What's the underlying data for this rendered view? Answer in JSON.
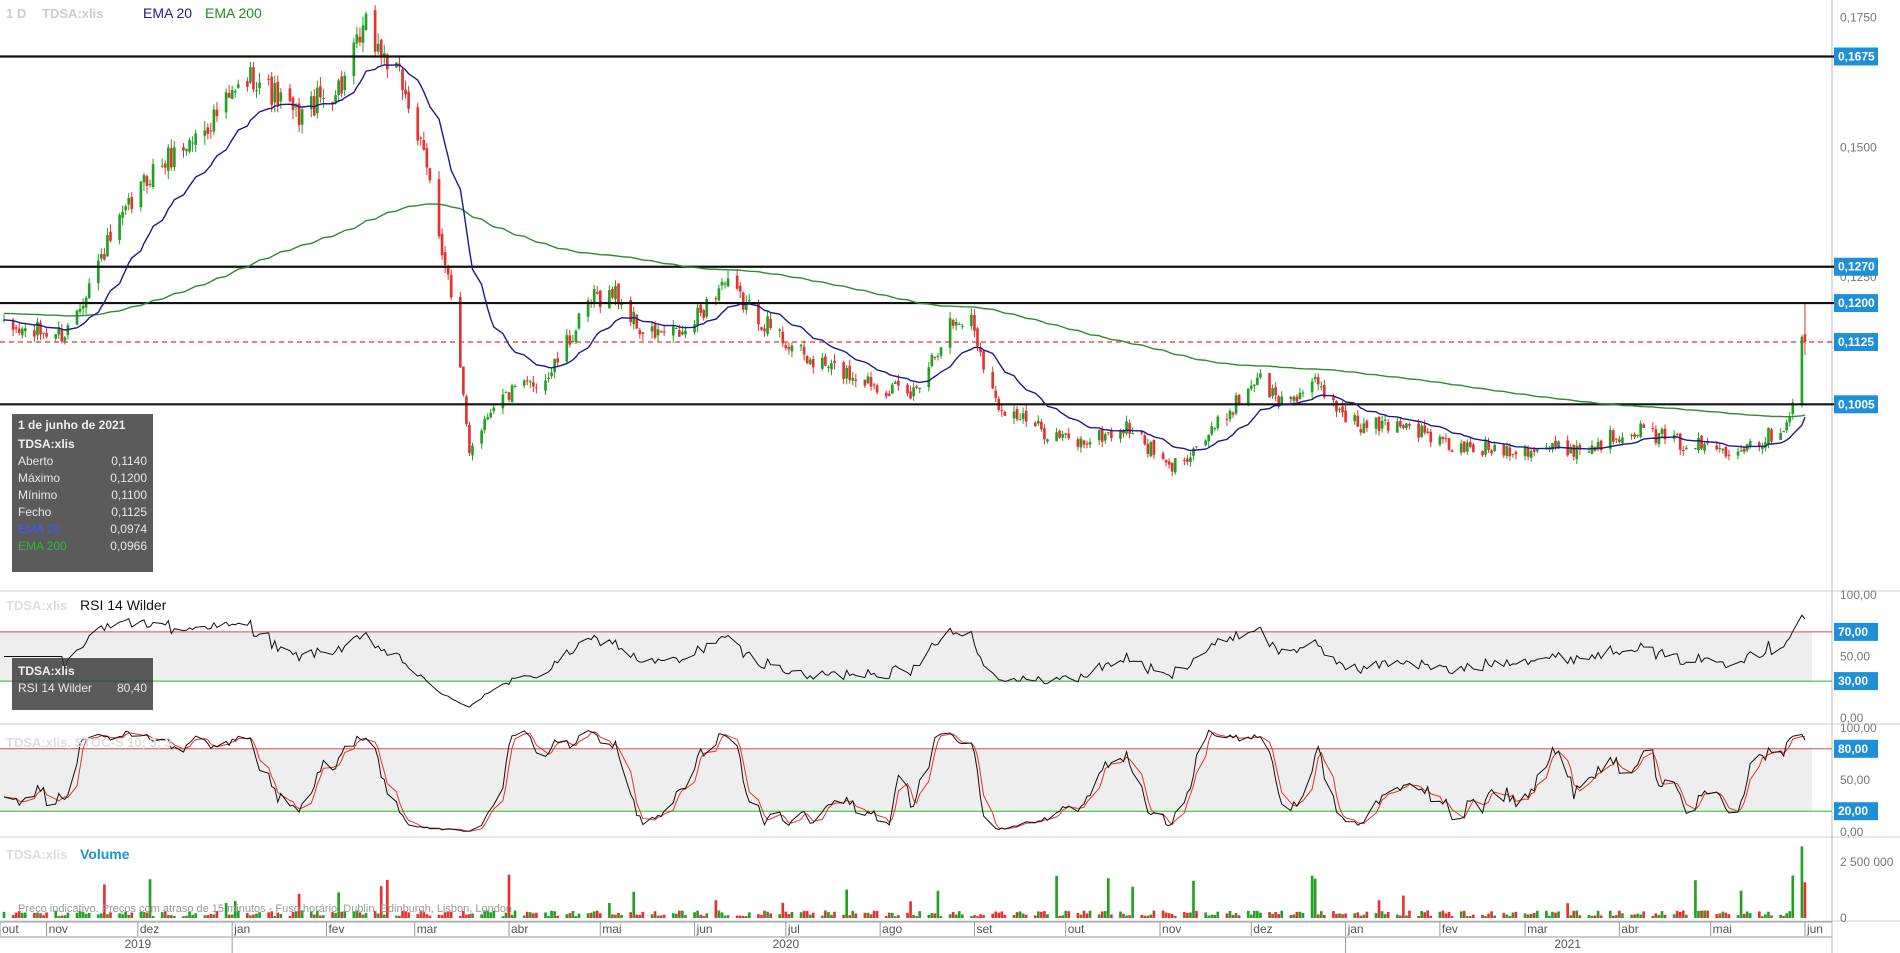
{
  "header": {
    "timeframe": "1 D",
    "symbol": "TDSA:xlis",
    "ema20_label": "EMA 20",
    "ema200_label": "EMA 200"
  },
  "rsi_panel": {
    "symbol": "TDSA:xlis",
    "label": "RSI 14 Wilder"
  },
  "stoch_panel": {
    "label": "TDSA:xlis, STOC-S 10; 3; 3"
  },
  "volume_panel": {
    "symbol": "TDSA:xlis",
    "label": "Volume"
  },
  "disclaimer": "Preço indicativo. Preços com atraso de 15 minutos - Fuso horário: Dublin, Edinburgh, Lisbon, London",
  "tooltip": {
    "date": "1 de junho de 2021",
    "symbol": "TDSA:xlis",
    "rows": [
      {
        "label": "Aberto",
        "value": "0,1140"
      },
      {
        "label": "Máximo",
        "value": "0,1200"
      },
      {
        "label": "Mínimo",
        "value": "0,1100"
      },
      {
        "label": "Fecho",
        "value": "0,1125"
      },
      {
        "label": "EMA 20",
        "value": "0,0974"
      },
      {
        "label": "EMA 200",
        "value": "0,0966"
      }
    ]
  },
  "rsi_tooltip": {
    "symbol": "TDSA:xlis",
    "label": "RSI 14 Wilder",
    "value": "80,40"
  },
  "colors": {
    "up": "#22a022",
    "down": "#e8312f",
    "ema20": "#1a1a8c",
    "ema200": "#2e8b2e",
    "axis_label_bg": "#1f8fd6",
    "overbought": "#d94a4a",
    "oversold": "#2ab52a"
  },
  "chart_data": {
    "type": "candlestick",
    "title": "TDSA:xlis",
    "price_axis": {
      "ylim": [
        0.0655,
        0.178
      ],
      "ticks": [
        {
          "value": 0.175,
          "label": "0,1750"
        },
        {
          "value": 0.15,
          "label": "0,1500"
        },
        {
          "value": 0.125,
          "label": "0,1250"
        }
      ],
      "highlighted": [
        {
          "value": 0.1675,
          "label": "0,1675"
        },
        {
          "value": 0.127,
          "label": "0,1270"
        },
        {
          "value": 0.12,
          "label": "0,1200"
        },
        {
          "value": 0.1125,
          "label": "0,1125"
        },
        {
          "value": 0.1005,
          "label": "0,1005"
        }
      ]
    },
    "horizontal_lines": [
      0.1675,
      0.127,
      0.12,
      0.1005
    ],
    "last_price_line": 0.1125,
    "price_keypoints": [
      [
        "2019-10-18",
        0.115
      ],
      [
        "2019-11-07",
        0.114
      ],
      [
        "2019-11-20",
        0.13
      ],
      [
        "2019-12-05",
        0.145
      ],
      [
        "2019-12-20",
        0.152
      ],
      [
        "2020-01-08",
        0.164
      ],
      [
        "2020-01-22",
        0.156
      ],
      [
        "2020-02-06",
        0.162
      ],
      [
        "2020-02-14",
        0.173
      ],
      [
        "2020-02-27",
        0.161
      ],
      [
        "2020-03-06",
        0.143
      ],
      [
        "2020-03-12",
        0.125
      ],
      [
        "2020-03-19",
        0.092
      ],
      [
        "2020-03-27",
        0.101
      ],
      [
        "2020-04-14",
        0.106
      ],
      [
        "2020-04-29",
        0.121
      ],
      [
        "2020-05-06",
        0.122
      ],
      [
        "2020-05-15",
        0.114
      ],
      [
        "2020-05-29",
        0.114
      ],
      [
        "2020-06-10",
        0.124
      ],
      [
        "2020-06-19",
        0.119
      ],
      [
        "2020-07-08",
        0.109
      ],
      [
        "2020-07-24",
        0.106
      ],
      [
        "2020-08-11",
        0.102
      ],
      [
        "2020-08-24",
        0.116
      ],
      [
        "2020-08-31",
        0.117
      ],
      [
        "2020-09-08",
        0.101
      ],
      [
        "2020-09-21",
        0.096
      ],
      [
        "2020-10-05",
        0.093
      ],
      [
        "2020-10-22",
        0.096
      ],
      [
        "2020-11-04",
        0.088
      ],
      [
        "2020-11-18",
        0.095
      ],
      [
        "2020-12-03",
        0.106
      ],
      [
        "2020-12-10",
        0.101
      ],
      [
        "2020-12-22",
        0.104
      ],
      [
        "2021-01-06",
        0.096
      ],
      [
        "2021-01-20",
        0.097
      ],
      [
        "2021-02-05",
        0.092
      ],
      [
        "2021-02-25",
        0.092
      ],
      [
        "2021-03-22",
        0.092
      ],
      [
        "2021-04-05",
        0.096
      ],
      [
        "2021-04-21",
        0.093
      ],
      [
        "2021-05-06",
        0.092
      ],
      [
        "2021-05-19",
        0.094
      ],
      [
        "2021-05-26",
        0.097
      ],
      [
        "2021-05-28",
        0.102
      ],
      [
        "2021-05-31",
        0.1125
      ],
      [
        "2021-06-01",
        0.1125
      ]
    ],
    "last_candle": {
      "date": "2021-06-01",
      "open": 0.114,
      "high": 0.12,
      "low": 0.11,
      "close": 0.1125
    },
    "ema20_last": 0.0974,
    "ema200_last": 0.0966,
    "rsi": {
      "ylim": [
        0,
        100
      ],
      "ticks": [
        {
          "value": 100,
          "label": "100,00"
        },
        {
          "value": 50,
          "label": "50,00"
        },
        {
          "value": 0,
          "label": "0,00"
        }
      ],
      "levels": [
        {
          "value": 70,
          "label": "70,00"
        },
        {
          "value": 30,
          "label": "30,00"
        }
      ],
      "last": 80.4
    },
    "stochastic": {
      "ylim": [
        0,
        100
      ],
      "ticks": [
        {
          "value": 100,
          "label": "100,00"
        },
        {
          "value": 50,
          "label": "50,00"
        },
        {
          "value": 0,
          "label": "0,00"
        }
      ],
      "levels": [
        {
          "value": 80,
          "label": "80,00"
        },
        {
          "value": 20,
          "label": "20,00"
        }
      ]
    },
    "volume": {
      "ylim": [
        0,
        3400000
      ],
      "ticks": [
        {
          "value": 2500000,
          "label": "2 500 000"
        },
        {
          "value": 0,
          "label": "0"
        }
      ]
    },
    "x_axis": {
      "range": [
        "2019-10-18",
        "2021-06-02"
      ],
      "months": [
        {
          "date": "2019-10-15",
          "label": "out"
        },
        {
          "date": "2019-11-01",
          "label": "nov"
        },
        {
          "date": "2019-12-01",
          "label": "dez"
        },
        {
          "date": "2020-01-01",
          "label": "jan"
        },
        {
          "date": "2020-02-01",
          "label": "fev"
        },
        {
          "date": "2020-03-01",
          "label": "mar"
        },
        {
          "date": "2020-04-01",
          "label": "abr"
        },
        {
          "date": "2020-05-01",
          "label": "mai"
        },
        {
          "date": "2020-06-01",
          "label": "jun"
        },
        {
          "date": "2020-07-01",
          "label": "jul"
        },
        {
          "date": "2020-08-01",
          "label": "ago"
        },
        {
          "date": "2020-09-01",
          "label": "set"
        },
        {
          "date": "2020-10-01",
          "label": "out"
        },
        {
          "date": "2020-11-01",
          "label": "nov"
        },
        {
          "date": "2020-12-01",
          "label": "dez"
        },
        {
          "date": "2021-01-01",
          "label": "jan"
        },
        {
          "date": "2021-02-01",
          "label": "fev"
        },
        {
          "date": "2021-03-01",
          "label": "mar"
        },
        {
          "date": "2021-04-01",
          "label": "abr"
        },
        {
          "date": "2021-05-01",
          "label": "mai"
        },
        {
          "date": "2021-06-01",
          "label": "jun"
        }
      ],
      "years": [
        {
          "date": "2019-12-01",
          "label": "2019"
        },
        {
          "date": "2020-07-01",
          "label": "2020"
        },
        {
          "date": "2021-03-15",
          "label": "2021"
        }
      ]
    }
  }
}
